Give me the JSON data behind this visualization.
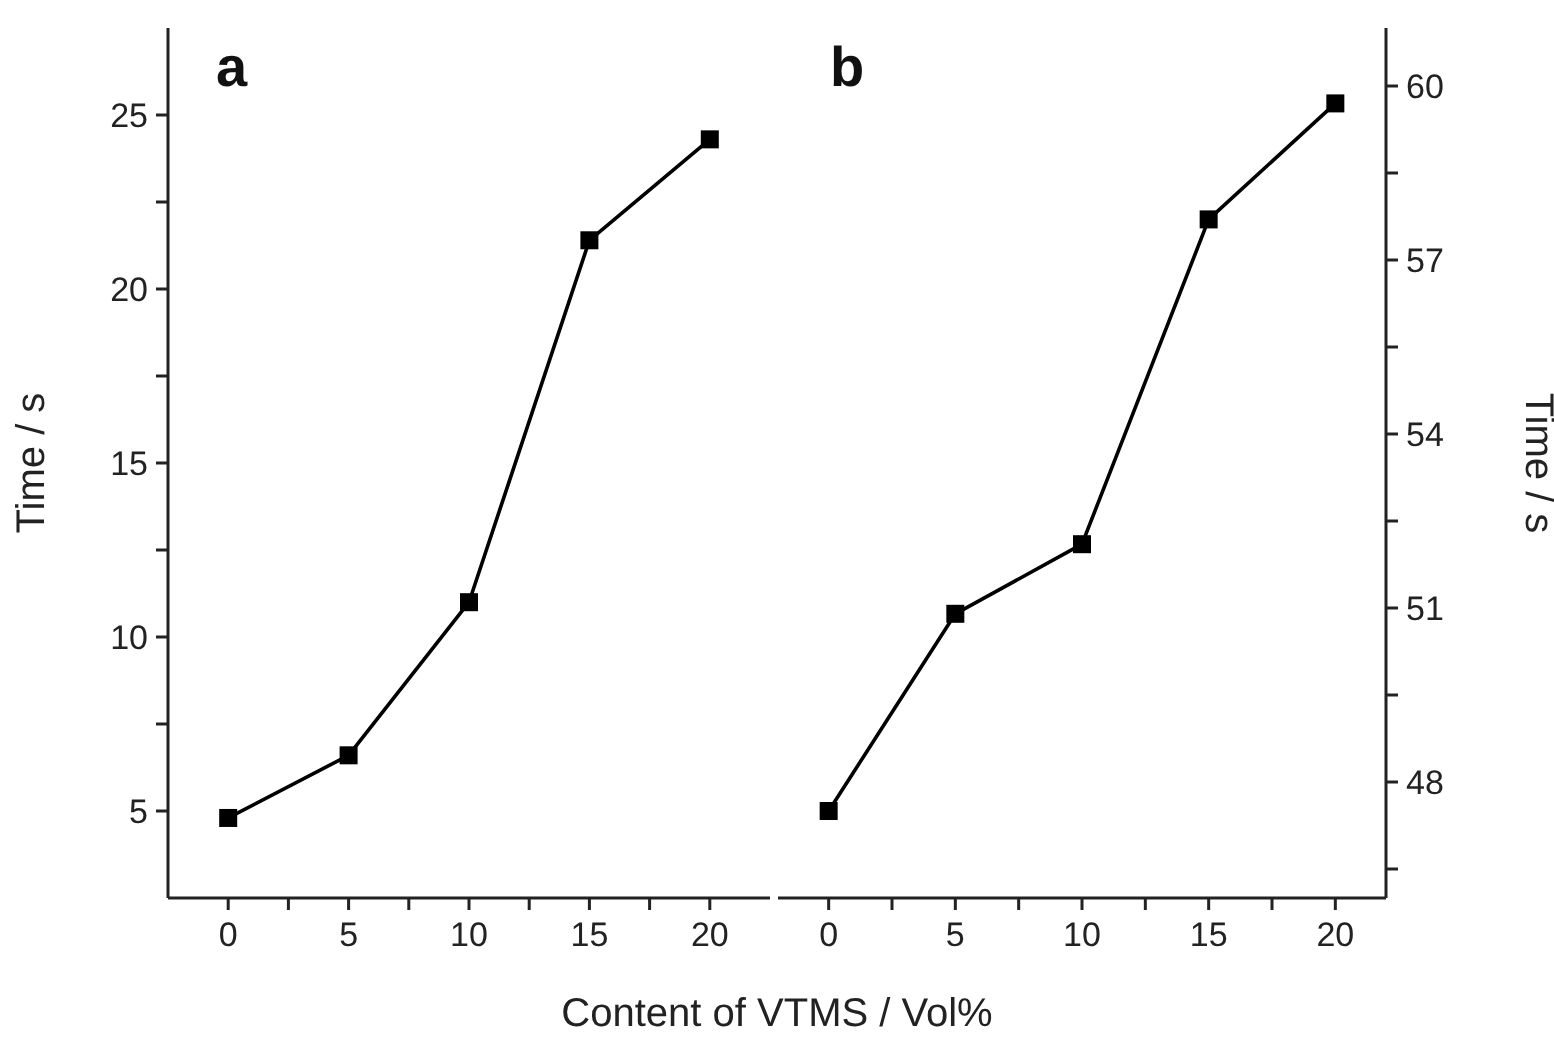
{
  "chart_data": [
    {
      "type": "line",
      "xlabel": "Content of VTMS / Vol%",
      "ylabel": "Time / s",
      "annotations": [
        "a"
      ],
      "x": [
        0,
        5,
        10,
        15,
        20
      ],
      "series": [
        {
          "color": "#000000",
          "values": [
            4.8,
            6.6,
            11.0,
            21.4,
            24.3
          ]
        }
      ],
      "xlim": [
        -2.5,
        22.5
      ],
      "xticks": [
        0,
        {
          "value": 2.5,
          "label": null
        },
        5,
        {
          "value": 7.5,
          "label": null
        },
        10,
        {
          "value": 12.5,
          "label": null
        },
        15,
        {
          "value": 17.5,
          "label": null
        },
        20
      ],
      "ylim": [
        2.5,
        27.5
      ],
      "yticks": [
        5,
        {
          "value": 7.5,
          "label": null
        },
        10,
        {
          "value": 12.5,
          "label": null
        },
        15,
        {
          "value": 17.5,
          "label": null
        },
        20,
        {
          "value": 22.5,
          "label": null
        },
        25
      ],
      "marker": "square",
      "line_style": "solid",
      "grid": false,
      "legend": false
    },
    {
      "type": "line",
      "y2label": "Time / s",
      "annotations": [
        "b"
      ],
      "x": [
        0,
        5,
        10,
        15,
        20
      ],
      "series": [
        {
          "color": "#000000",
          "axis": "y2",
          "values": [
            47.5,
            50.9,
            52.1,
            57.7,
            59.7
          ]
        }
      ],
      "xlim": [
        -2,
        22
      ],
      "xticks": [
        0,
        {
          "value": 2.5,
          "label": null
        },
        5,
        {
          "value": 7.5,
          "label": null
        },
        10,
        {
          "value": 12.5,
          "label": null
        },
        15,
        {
          "value": 17.5,
          "label": null
        },
        20
      ],
      "y2lim": [
        46,
        61
      ],
      "y2ticks": [
        {
          "value": 46.5,
          "label": null
        },
        48,
        {
          "value": 49.5,
          "label": null
        },
        51,
        {
          "value": 52.5,
          "label": null
        },
        54,
        {
          "value": 55.5,
          "label": null
        },
        57,
        {
          "value": 58.5,
          "label": null
        },
        60
      ],
      "marker": "square",
      "line_style": "solid",
      "grid": false,
      "legend": false
    }
  ]
}
